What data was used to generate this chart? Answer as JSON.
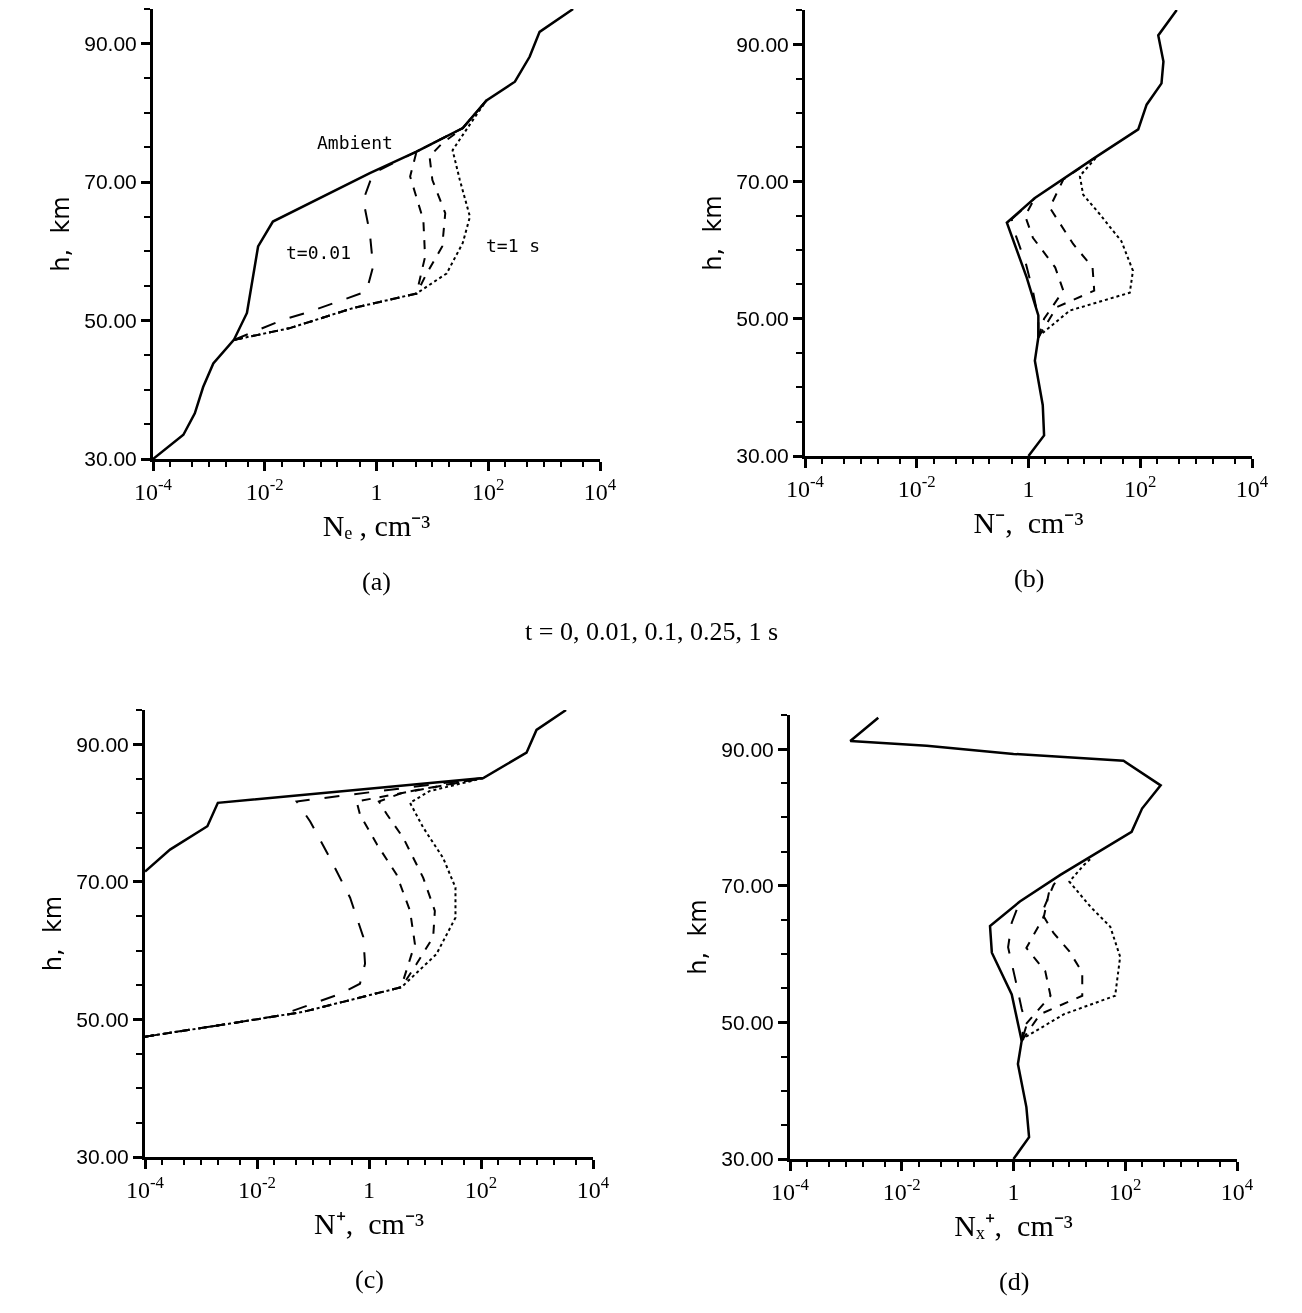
{
  "chart_data": [
    {
      "type": "line",
      "title": "(a)",
      "xlabel": "Nₑ , cm⁻³",
      "ylabel": "h,  km",
      "log": "x",
      "xlim": [
        0.0001,
        10000
      ],
      "ylim": [
        30,
        95
      ],
      "xticks": [
        {
          "value": 0.0001,
          "label": "10$^{-4}$"
        },
        {
          "value": 0.01,
          "label": "10$^{-2}$"
        },
        1,
        {
          "value": 100,
          "label": "10$^{2}$"
        },
        {
          "value": 10000,
          "label": "10$^{4}$"
        }
      ],
      "yticks": [
        {
          "value": 30,
          "label": "30.00"
        },
        {
          "value": 50,
          "label": "50.00"
        },
        {
          "value": 70,
          "label": "70.00"
        },
        {
          "value": 90,
          "label": "90.00"
        }
      ],
      "annotations": [
        "Ambient",
        "t=0.01",
        "t=1 s",
        "t = 0, 0.01, 0.1, 0.25, 1 s"
      ],
      "series": [
        {
          "color": "#000000",
          "line_style": "solid",
          "x": [
            0.0001,
            0.00035,
            0.00056,
            0.00079,
            0.0012,
            0.0028,
            0.0048,
            0.0076,
            0.014,
            0.76,
            5.2,
            35,
            93,
            300,
            550,
            830,
            3300
          ],
          "values": [
            30,
            33.5,
            36.6,
            40.4,
            43.8,
            47.2,
            51.1,
            60.7,
            64.3,
            71.3,
            74.4,
            77.8,
            81.8,
            84.5,
            88.1,
            91.7,
            95
          ]
        },
        {
          "color": "#000000",
          "line_style": "dashed",
          "x": [
            0.0028,
            0.021,
            0.065,
            0.66,
            0.87,
            0.76,
            0.58,
            0.87,
            5.2,
            35,
            93
          ],
          "values": [
            47.2,
            50.1,
            51.3,
            54.2,
            57.8,
            62.6,
            67.4,
            71.3,
            74.4,
            77.8,
            81.8
          ]
        },
        {
          "color": "#000000",
          "line_style": "dashed",
          "x": [
            0.0028,
            0.028,
            0.38,
            5.2,
            7.4,
            6.9,
            4.0,
            5.2,
            35,
            93
          ],
          "values": [
            47.2,
            48.9,
            51.8,
            53.9,
            59.2,
            64.5,
            70.8,
            74.4,
            77.8,
            81.8
          ]
        },
        {
          "color": "#000000",
          "line_style": "dashed",
          "x": [
            0.0028,
            0.028,
            0.38,
            5.2,
            7.8,
            15,
            17,
            10,
            8.9,
            15,
            35,
            93
          ],
          "values": [
            47.2,
            48.9,
            51.8,
            53.9,
            56.7,
            60.7,
            65.5,
            70.3,
            73.7,
            75.6,
            77.8,
            81.8
          ]
        },
        {
          "color": "#000000",
          "line_style": "dotted",
          "x": [
            0.0028,
            0.028,
            0.38,
            5.2,
            18,
            35,
            47,
            31,
            23,
            44,
            93
          ],
          "values": [
            47.2,
            48.9,
            51.8,
            53.9,
            56.8,
            61.2,
            65.0,
            70.3,
            74.6,
            78.0,
            81.8
          ]
        }
      ]
    },
    {
      "type": "line",
      "title": "(b)",
      "xlabel": "N⁻,  cm⁻³",
      "ylabel": "h,  km",
      "log": "x",
      "xlim": [
        0.0001,
        10000
      ],
      "ylim": [
        30,
        95
      ],
      "xticks": [
        {
          "value": 0.0001,
          "label": "10$^{-4}$"
        },
        {
          "value": 0.01,
          "label": "10$^{-2}$"
        },
        1,
        {
          "value": 100,
          "label": "10$^{2}$"
        },
        {
          "value": 10000,
          "label": "10$^{4}$"
        }
      ],
      "yticks": [
        {
          "value": 30,
          "label": "30.00"
        },
        {
          "value": 50,
          "label": "50.00"
        },
        {
          "value": 70,
          "label": "70.00"
        },
        {
          "value": 90,
          "label": "90.00"
        }
      ],
      "series": [
        {
          "color": "#000000",
          "line_style": "solid",
          "x": [
            1.0,
            1.9,
            1.8,
            1.3,
            1.5,
            1.5,
            0.93,
            0.41,
            1.3,
            17,
            92,
            130,
            240,
            260,
            210,
            450
          ],
          "values": [
            30,
            33.0,
            37.4,
            43.9,
            47.3,
            50.5,
            56.0,
            64.0,
            67.6,
            73.7,
            77.6,
            81.2,
            84.3,
            87.5,
            91.3,
            95
          ]
        },
        {
          "color": "#000000",
          "line_style": "dashed",
          "x": [
            1.5,
            1.5,
            1.2,
            0.9,
            0.6,
            0.5,
            1.3
          ],
          "values": [
            47.3,
            50,
            54,
            58,
            62,
            64.5,
            67.6
          ]
        },
        {
          "color": "#000000",
          "line_style": "dashed",
          "x": [
            1.5,
            1.9,
            4.2,
            3.0,
            1.2,
            0.87,
            1.3
          ],
          "values": [
            47.3,
            50.0,
            54.1,
            57.5,
            61.8,
            65.0,
            67.6
          ]
        },
        {
          "color": "#000000",
          "line_style": "dashed",
          "x": [
            1.5,
            3.2,
            15,
            14,
            6.3,
            2.4,
            4.2,
            17
          ],
          "values": [
            47.3,
            51.7,
            54.1,
            57.5,
            60.9,
            66.2,
            70.3,
            73.7
          ]
        },
        {
          "color": "#000000",
          "line_style": "dotted",
          "x": [
            1.5,
            1.6,
            5.5,
            65,
            74,
            46,
            19,
            9.5,
            8.3,
            17
          ],
          "values": [
            47.3,
            47.6,
            51.2,
            53.8,
            57.0,
            61.3,
            65.2,
            68.1,
            70.8,
            73.7
          ]
        }
      ]
    },
    {
      "type": "line",
      "title": "(c)",
      "xlabel": "N⁺,  cm⁻³",
      "ylabel": "h,  km",
      "log": "x",
      "xlim": [
        0.0001,
        10000
      ],
      "ylim": [
        30,
        95
      ],
      "xticks": [
        {
          "value": 0.0001,
          "label": "10$^{-4}$"
        },
        {
          "value": 0.01,
          "label": "10$^{-2}$"
        },
        1,
        {
          "value": 100,
          "label": "10$^{2}$"
        },
        {
          "value": 10000,
          "label": "10$^{4}$"
        }
      ],
      "yticks": [
        {
          "value": 30,
          "label": "30.00"
        },
        {
          "value": 50,
          "label": "50.00"
        },
        {
          "value": 70,
          "label": "70.00"
        },
        {
          "value": 90,
          "label": "90.00"
        }
      ],
      "series": [
        {
          "color": "#000000",
          "line_style": "solid",
          "x": [
            0.0001,
            0.00028,
            0.0013,
            0.002,
            110,
            650,
            980,
            3300
          ],
          "values": [
            71.5,
            74.7,
            78.1,
            81.5,
            85.1,
            88.8,
            92.1,
            95
          ]
        },
        {
          "color": "#000000",
          "line_style": "dashed",
          "x": [
            0.0001,
            0.0033,
            0.026,
            0.3,
            0.69,
            0.85,
            0.79,
            0.46,
            0.2,
            0.089,
            0.051,
            110
          ],
          "values": [
            47.5,
            49.4,
            50.6,
            53.7,
            55.2,
            58.1,
            62.0,
            67.7,
            73.5,
            78.8,
            81.7,
            85.1
          ]
        },
        {
          "color": "#000000",
          "line_style": "dashed",
          "x": [
            0.0001,
            0.0033,
            0.066,
            3.8,
            4.1,
            6.6,
            5.4,
            3.1,
            1.4,
            0.69,
            0.6,
            110
          ],
          "values": [
            47.5,
            49.4,
            51.1,
            54.7,
            55.7,
            61.0,
            65.8,
            71.1,
            75.4,
            79.8,
            81.7,
            85.1
          ]
        },
        {
          "color": "#000000",
          "line_style": "dashed",
          "x": [
            0.0001,
            0.0033,
            0.066,
            3.8,
            7.1,
            14,
            15,
            9.3,
            4.1,
            2.1,
            1.5,
            4.1,
            110
          ],
          "values": [
            47.5,
            49.4,
            51.1,
            54.7,
            58.1,
            62.0,
            65.8,
            70.6,
            76.4,
            79.8,
            81.7,
            83.0,
            85.1
          ]
        },
        {
          "color": "#000000",
          "line_style": "dotted",
          "x": [
            0.0001,
            0.0033,
            0.066,
            3.8,
            4.7,
            16,
            35,
            35,
            21,
            9.3,
            5.4,
            12,
            110
          ],
          "values": [
            47.5,
            49.4,
            51.1,
            54.7,
            55.4,
            59.5,
            64.8,
            69.2,
            73.5,
            77.9,
            81.5,
            83.2,
            85.1
          ]
        }
      ]
    },
    {
      "type": "line",
      "title": "(d)",
      "xlabel": "Nₓ⁺,  cm⁻³",
      "ylabel": "h,  km",
      "log": "x",
      "xlim": [
        0.0001,
        10000
      ],
      "ylim": [
        30,
        95
      ],
      "xticks": [
        {
          "value": 0.0001,
          "label": "10$^{-4}$"
        },
        {
          "value": 0.01,
          "label": "10$^{-2}$"
        },
        1,
        {
          "value": 100,
          "label": "10$^{2}$"
        },
        {
          "value": 10000,
          "label": "10$^{4}$"
        }
      ],
      "yticks": [
        {
          "value": 30,
          "label": "30.00"
        },
        {
          "value": 50,
          "label": "50.00"
        },
        {
          "value": 70,
          "label": "70.00"
        },
        {
          "value": 90,
          "label": "90.00"
        }
      ],
      "series": [
        {
          "color": "#000000",
          "line_style": "solid",
          "x": [
            1.0,
            1.9,
            1.7,
            1.2,
            1.4,
            0.93,
            0.41,
            0.38,
            1.3,
            6.9,
            130,
            200,
            430,
            93,
            1.0,
            0.028,
            0.0012,
            0.0038
          ],
          "values": [
            30,
            33.2,
            37.6,
            43.9,
            47.3,
            54.1,
            60.2,
            64.1,
            67.7,
            71.6,
            77.9,
            81.3,
            84.7,
            88.3,
            89.3,
            90.5,
            91.2,
            94.6
          ]
        },
        {
          "color": "#000000",
          "line_style": "dashed",
          "x": [
            1.4,
            1.7,
            1.4,
            1.1,
            0.8,
            0.93,
            1.3
          ],
          "values": [
            47.3,
            49.5,
            52,
            56,
            61,
            64.6,
            67.7
          ]
        },
        {
          "color": "#000000",
          "line_style": "dashed",
          "x": [
            1.4,
            1.5,
            4.6,
            3.7,
            1.7,
            3.5,
            4.6
          ],
          "values": [
            47.3,
            49.3,
            53.9,
            57.5,
            60.9,
            65.5,
            70.1
          ]
        },
        {
          "color": "#000000",
          "line_style": "dashed",
          "x": [
            1.4,
            3.0,
            17,
            17,
            10,
            5.2,
            3.2,
            5.2,
            6.9
          ],
          "values": [
            47.3,
            51.2,
            53.9,
            57.3,
            60.4,
            63.1,
            66.0,
            70.1,
            71.6
          ]
        },
        {
          "color": "#000000",
          "line_style": "dotted",
          "x": [
            1.4,
            1.6,
            8.0,
            66,
            81,
            54,
            24,
            10,
            18,
            25
          ],
          "values": [
            47.3,
            47.8,
            51.2,
            53.9,
            59.6,
            64.0,
            66.9,
            70.6,
            73.0,
            74.1
          ]
        }
      ]
    }
  ]
}
